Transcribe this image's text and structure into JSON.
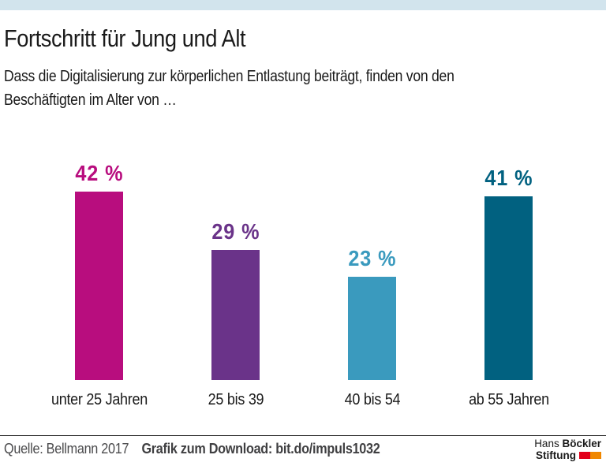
{
  "page": {
    "title": "Fortschritt für Jung und Alt",
    "subtitle_line1": "Dass die Digitalisierung zur körperlichen Entlastung beiträgt, finden von den",
    "subtitle_line2": "Beschäftigten im Alter von …"
  },
  "chart_data": {
    "type": "bar",
    "title": "Fortschritt für Jung und Alt",
    "subtitle": "Dass die Digitalisierung zur körperlichen Entlastung beiträgt, finden von den Beschäftigten im Alter von …",
    "categories": [
      "unter 25 Jahren",
      "25 bis 39",
      "40 bis 54",
      "ab 55 Jahren"
    ],
    "values": [
      42,
      29,
      23,
      41
    ],
    "value_labels": [
      "42 %",
      "29 %",
      "23 %",
      "41 %"
    ],
    "bar_colors": [
      "#b80d7e",
      "#6a3389",
      "#3a9abe",
      "#016180"
    ],
    "unit": "%",
    "ylim": [
      0,
      50
    ],
    "grid": false,
    "legend": "none",
    "axis_labels": "none"
  },
  "footer": {
    "source": "Quelle: Bellmann 2017",
    "download": "Grafik zum Download: bit.do/impuls1032",
    "logo": {
      "line1_regular": "Hans",
      "line1_bold": "Böckler",
      "line2_bold": "Stiftung",
      "square_colors": [
        "#e2001a",
        "#f08700"
      ]
    }
  },
  "colors": {
    "top_strip": "#d2e4ed",
    "text": "#1a1a1a",
    "footer_text": "#4a4a4c"
  }
}
